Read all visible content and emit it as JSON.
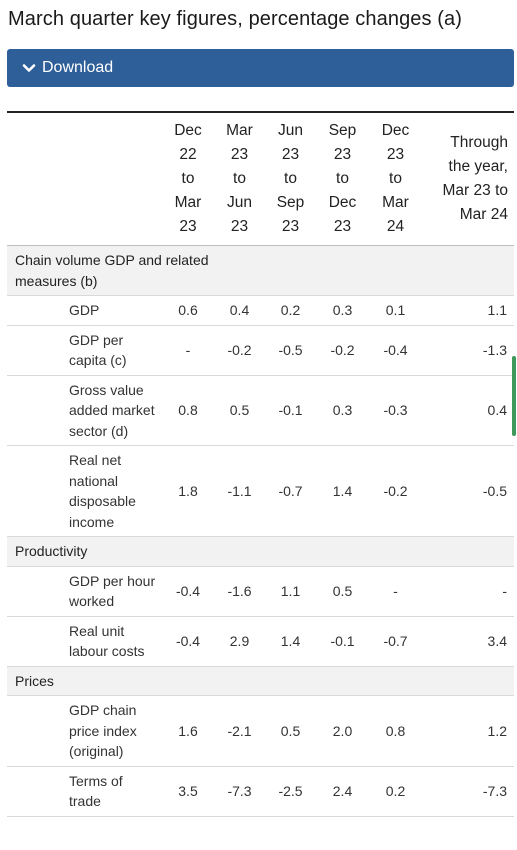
{
  "title": "March quarter key figures, percentage changes (a)",
  "download_label": "Download",
  "columns": [
    [
      "Dec",
      "22",
      "to",
      "Mar",
      "23"
    ],
    [
      "Mar",
      "23",
      "to",
      "Jun",
      "23"
    ],
    [
      "Jun",
      "23",
      "to",
      "Sep",
      "23"
    ],
    [
      "Sep",
      "23",
      "to",
      "Dec",
      "23"
    ],
    [
      "Dec",
      "23",
      "to",
      "Mar",
      "24"
    ],
    [
      "Through",
      "the year,",
      "Mar 23 to",
      "Mar 24"
    ]
  ],
  "sections": [
    {
      "label": "Chain volume GDP and related measures (b)",
      "rows": [
        {
          "label": "GDP",
          "values": [
            "0.6",
            "0.4",
            "0.2",
            "0.3",
            "0.1",
            "1.1"
          ]
        },
        {
          "label": "GDP per capita (c)",
          "values": [
            "-",
            "-0.2",
            "-0.5",
            "-0.2",
            "-0.4",
            "-1.3"
          ]
        },
        {
          "label": "Gross value added market sector (d)",
          "values": [
            "0.8",
            "0.5",
            "-0.1",
            "0.3",
            "-0.3",
            "0.4"
          ]
        },
        {
          "label": "Real net national disposable income",
          "values": [
            "1.8",
            "-1.1",
            "-0.7",
            "1.4",
            "-0.2",
            "-0.5"
          ]
        }
      ]
    },
    {
      "label": "Productivity",
      "rows": [
        {
          "label": "GDP per hour worked",
          "values": [
            "-0.4",
            "-1.6",
            "1.1",
            "0.5",
            "-",
            "-"
          ]
        },
        {
          "label": "Real unit labour costs",
          "values": [
            "-0.4",
            "2.9",
            "1.4",
            "-0.1",
            "-0.7",
            "3.4"
          ]
        }
      ]
    },
    {
      "label": "Prices",
      "rows": [
        {
          "label": "GDP chain price index (original)",
          "values": [
            "1.6",
            "-2.1",
            "0.5",
            "2.0",
            "0.8",
            "1.2"
          ]
        },
        {
          "label": "Terms of trade",
          "values": [
            "3.5",
            "-7.3",
            "-2.5",
            "2.4",
            "0.2",
            "-7.3"
          ]
        }
      ]
    }
  ]
}
